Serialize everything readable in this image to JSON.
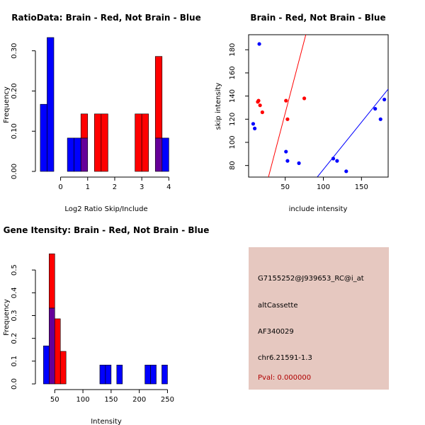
{
  "colors": {
    "red": "#ff0000",
    "blue": "#0000ff",
    "overlap": "#660099",
    "info_bg": "#e6c8c0",
    "pval": "#b00000"
  },
  "chart_data": [
    {
      "type": "bar",
      "title": "RatioData: Brain - Red, Not Brain - Blue",
      "xlabel": "Log2 Ratio Skip/Include",
      "ylabel": "Frequency",
      "xlim": [
        -0.8,
        4.2
      ],
      "ylim": [
        0,
        0.34
      ],
      "xticks": [
        0,
        1,
        2,
        3,
        4
      ],
      "xtick_labels": [
        "0",
        "1",
        "2",
        "3",
        "4"
      ],
      "yticks": [
        0,
        0.1,
        0.2,
        0.3
      ],
      "ytick_labels": [
        "0.00",
        "0.10",
        "0.20",
        "0.30"
      ],
      "bin_width": 0.25,
      "series": [
        {
          "name": "Not Brain",
          "color": "blue",
          "bins": [
            [
              -0.75,
              0.167
            ],
            [
              -0.5,
              0.333
            ],
            [
              0.25,
              0.083
            ],
            [
              0.5,
              0.083
            ],
            [
              0.75,
              0.083
            ],
            [
              3.5,
              0.083
            ],
            [
              3.75,
              0.083
            ]
          ]
        },
        {
          "name": "Brain",
          "color": "red",
          "bins": [
            [
              0.75,
              0.143
            ],
            [
              1.25,
              0.143
            ],
            [
              1.5,
              0.143
            ],
            [
              2.75,
              0.143
            ],
            [
              3.0,
              0.143
            ],
            [
              3.5,
              0.286
            ]
          ]
        }
      ]
    },
    {
      "type": "scatter",
      "title": "Brain - Red, Not Brain - Blue",
      "xlabel": "include intensity",
      "ylabel": "skip intensity",
      "xlim": [
        2,
        185
      ],
      "ylim": [
        70,
        193
      ],
      "xticks": [
        50,
        100,
        150
      ],
      "xtick_labels": [
        "50",
        "100",
        "150"
      ],
      "yticks": [
        80,
        100,
        120,
        140,
        160,
        180
      ],
      "ytick_labels": [
        "80",
        "100",
        "120",
        "140",
        "160",
        "180"
      ],
      "series": [
        {
          "name": "Brain",
          "color": "red",
          "points": [
            [
              14,
              135
            ],
            [
              15,
              136
            ],
            [
              17,
              132
            ],
            [
              20,
              126
            ],
            [
              51,
              136
            ],
            [
              53,
              120
            ],
            [
              75,
              138
            ]
          ],
          "fit_line": [
            [
              28,
              70
            ],
            [
              77,
              193
            ]
          ]
        },
        {
          "name": "Not Brain",
          "color": "blue",
          "points": [
            [
              8,
              116
            ],
            [
              10,
              112
            ],
            [
              16,
              185
            ],
            [
              51,
              92
            ],
            [
              53,
              84
            ],
            [
              68,
              82
            ],
            [
              113,
              86
            ],
            [
              118,
              84
            ],
            [
              130,
              75
            ],
            [
              168,
              129
            ],
            [
              175,
              120
            ],
            [
              180,
              137
            ]
          ],
          "fit_line": [
            [
              92,
              70
            ],
            [
              185,
              146
            ]
          ]
        }
      ]
    },
    {
      "type": "bar",
      "title": "Gene Itensity: Brain - Red, Not Brain - Blue",
      "xlabel": "Intensity",
      "ylabel": "Frequency",
      "xlim": [
        22,
        262
      ],
      "ylim": [
        0,
        0.6
      ],
      "xticks": [
        50,
        100,
        150,
        200,
        250
      ],
      "xtick_labels": [
        "50",
        "100",
        "150",
        "200",
        "250"
      ],
      "yticks": [
        0,
        0.1,
        0.2,
        0.3,
        0.4,
        0.5
      ],
      "ytick_labels": [
        "0.0",
        "0.1",
        "0.2",
        "0.3",
        "0.4",
        "0.5"
      ],
      "bin_width": 10,
      "series": [
        {
          "name": "Not Brain",
          "color": "blue",
          "bins": [
            [
              30,
              0.167
            ],
            [
              40,
              0.333
            ],
            [
              130,
              0.083
            ],
            [
              140,
              0.083
            ],
            [
              160,
              0.083
            ],
            [
              210,
              0.083
            ],
            [
              220,
              0.083
            ],
            [
              240,
              0.083
            ]
          ]
        },
        {
          "name": "Brain",
          "color": "red",
          "bins": [
            [
              40,
              0.571
            ],
            [
              50,
              0.286
            ],
            [
              60,
              0.143
            ]
          ]
        }
      ]
    }
  ],
  "info_panel": {
    "probe": "G7155252@J939653_RC@i_at",
    "event_type": "altCassette",
    "accession": "AF340029",
    "location": "chr6.21591-1.3",
    "pval": "Pval: 0.000000"
  }
}
